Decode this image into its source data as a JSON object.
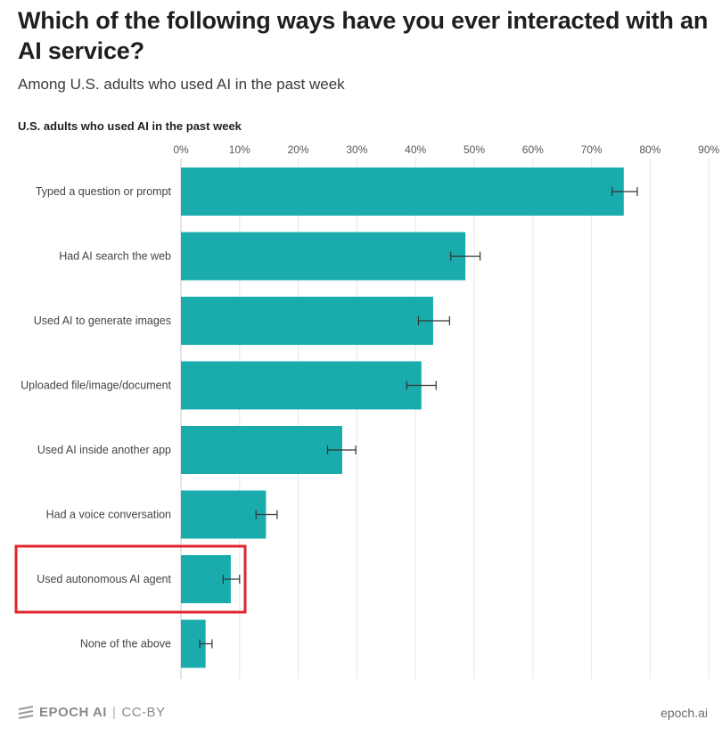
{
  "title": "Which of the following ways have you ever interacted with an AI service?",
  "subtitle": "Among U.S. adults who used AI in the past week",
  "footer": {
    "brand": "EPOCH AI",
    "separator": "|",
    "license": "CC-BY",
    "site": "epoch.ai"
  },
  "colors": {
    "bar": "#1aacac",
    "highlight": "#e0252b",
    "grid": "#e6e6e6",
    "error_bar": "#333333"
  },
  "chart_data": {
    "type": "bar",
    "orientation": "horizontal",
    "title": "U.S. adults who used AI in the past week",
    "xlim": [
      0,
      90
    ],
    "x_ticks": [
      "0%",
      "10%",
      "20%",
      "30%",
      "40%",
      "50%",
      "60%",
      "70%",
      "80%",
      "90%"
    ],
    "x_axis_position": "top",
    "grid": true,
    "categories": [
      "Typed a question or prompt",
      "Had AI search the web",
      "Used AI to generate images",
      "Uploaded file/image/document",
      "Used AI inside another app",
      "Had a voice conversation",
      "Used autonomous AI agent",
      "None of the above"
    ],
    "values": [
      75.5,
      48.5,
      43,
      41,
      27.5,
      14.5,
      8.5,
      4.2
    ],
    "error_low": [
      73.5,
      46,
      40.5,
      38.5,
      25,
      12.8,
      7.2,
      3.2
    ],
    "error_high": [
      77.8,
      51,
      45.8,
      43.5,
      29.8,
      16.4,
      10,
      5.3
    ],
    "highlighted_category": "Used autonomous AI agent"
  }
}
